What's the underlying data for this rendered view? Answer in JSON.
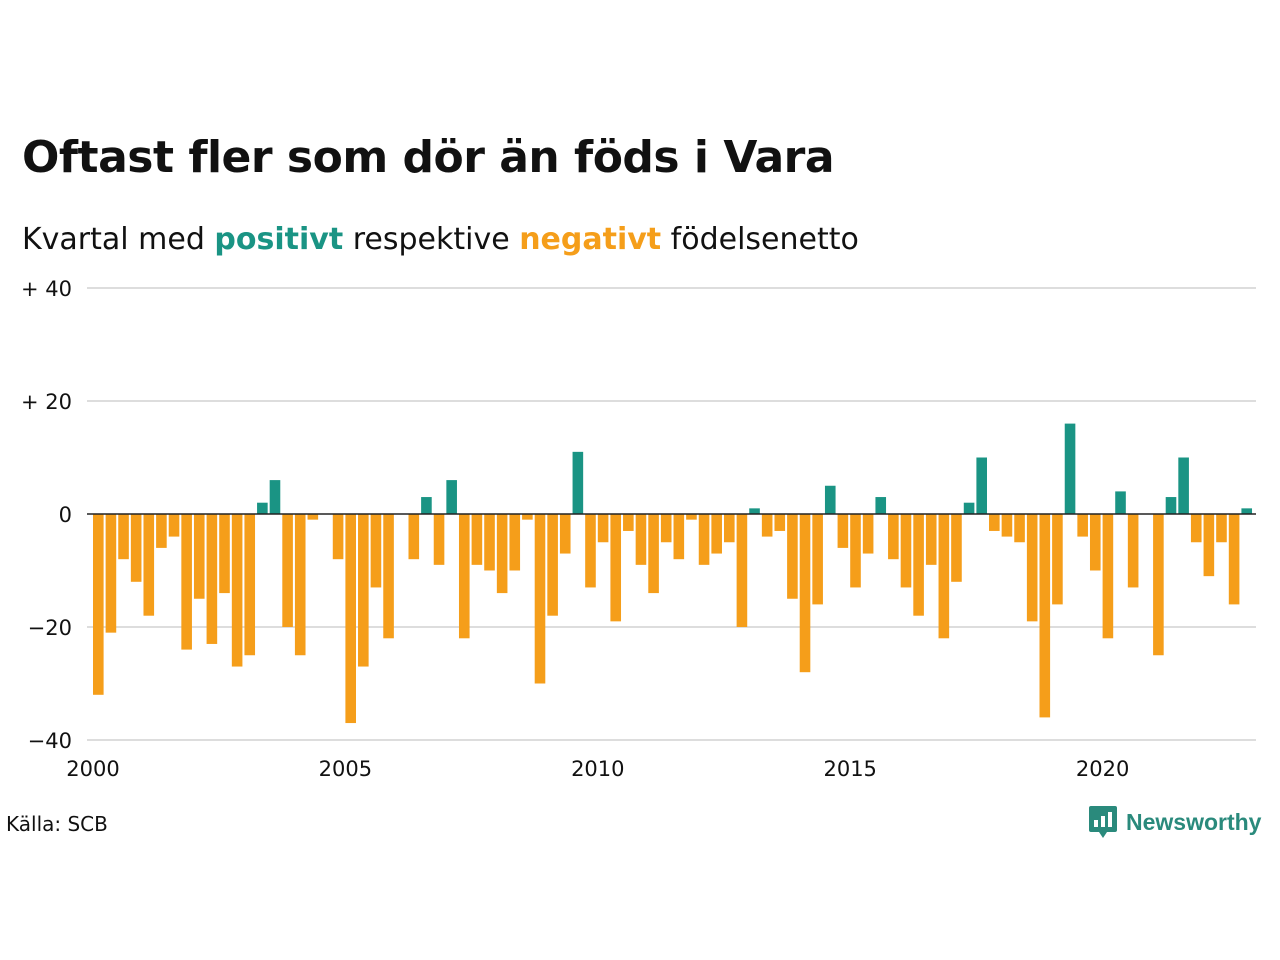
{
  "title": "Oftast fler som dör än föds i Vara",
  "subtitle": {
    "prefix": "Kvartal med ",
    "positive": "positivt",
    "middle": " respektive ",
    "negative": "negativt",
    "suffix": " födelsenetto"
  },
  "source": "Källa: SCB",
  "brand": "Newsworthy",
  "colors": {
    "positive": "#1a9484",
    "negative": "#f59e1a",
    "grid": "#dddddd",
    "zero": "#222222",
    "brand": "#2a8a7c"
  },
  "icons": [
    "newsworthy-logo-icon"
  ],
  "chart_data": {
    "type": "bar",
    "x_start": "2000 Q1",
    "x_ticks": [
      "2000",
      "2005",
      "2010",
      "2015",
      "2020"
    ],
    "y_ticks": [
      "+ 40",
      "+ 20",
      "0",
      "−20",
      "−40"
    ],
    "ylim": [
      -40,
      40
    ],
    "values": [
      -32,
      -21,
      -8,
      -12,
      -18,
      -6,
      -4,
      -24,
      -15,
      -23,
      -14,
      -27,
      -25,
      2,
      6,
      -20,
      -25,
      -1,
      0,
      -8,
      -37,
      -27,
      -13,
      -22,
      0,
      -8,
      3,
      -9,
      6,
      -22,
      -9,
      -10,
      -14,
      -10,
      -1,
      -30,
      -18,
      -7,
      11,
      -13,
      -5,
      -19,
      -3,
      -9,
      -14,
      -5,
      -8,
      -1,
      -9,
      -7,
      -5,
      -20,
      1,
      -4,
      -3,
      -15,
      -28,
      -16,
      5,
      -6,
      -13,
      -7,
      3,
      -8,
      -13,
      -18,
      -9,
      -22,
      -12,
      2,
      10,
      -3,
      -4,
      -5,
      -19,
      -36,
      -16,
      16,
      -4,
      -10,
      -22,
      4,
      -13,
      0,
      -25,
      3,
      10,
      -5,
      -11,
      -5,
      -16,
      1
    ]
  }
}
